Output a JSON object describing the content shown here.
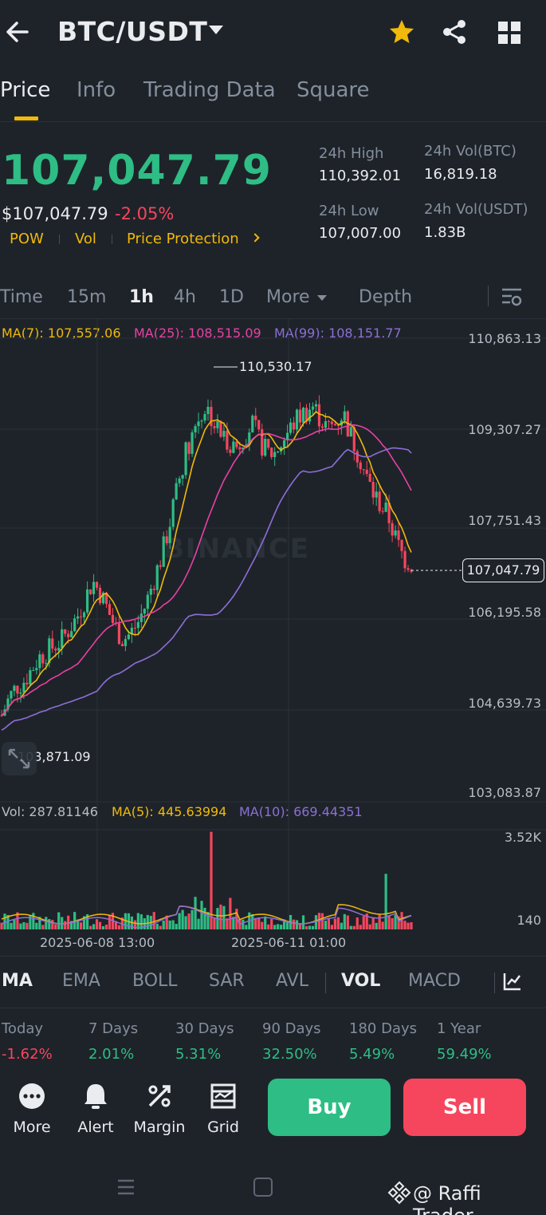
{
  "header": {
    "pair": "BTC/USDT",
    "icons": [
      "back-arrow-icon",
      "caret-down-icon",
      "star-icon",
      "share-icon",
      "grid-icon"
    ]
  },
  "tabs": [
    {
      "label": "Price",
      "active": true
    },
    {
      "label": "Info",
      "active": false
    },
    {
      "label": "Trading Data",
      "active": false
    },
    {
      "label": "Square",
      "active": false
    }
  ],
  "ticker": {
    "last_price": "107,047.79",
    "usd_price": "$107,047.79",
    "change_pct": "-2.05%",
    "tags": [
      "POW",
      "Vol",
      "Price Protection"
    ],
    "high_label": "24h High",
    "high": "110,392.01",
    "low_label": "24h Low",
    "low": "107,007.00",
    "vol_btc_label": "24h Vol(BTC)",
    "vol_btc": "16,819.18",
    "vol_usdt_label": "24h Vol(USDT)",
    "vol_usdt": "1.83B"
  },
  "intervals": {
    "items": [
      "Time",
      "15m",
      "1h",
      "4h",
      "1D",
      "More",
      "Depth"
    ],
    "active": "1h"
  },
  "ma_legend": {
    "ma7": "MA(7): 107,557.06",
    "ma25": "MA(25): 108,515.09",
    "ma99": "MA(99): 108,151.77"
  },
  "colors": {
    "up": "#2ebd85",
    "down": "#f6465d",
    "accent": "#f0b90b",
    "ma7": "#f0b90b",
    "ma25": "#e841a6",
    "ma99": "#8d6fd8"
  },
  "chart_data": {
    "type": "candlestick",
    "y_axis_labels": [
      "110,863.13",
      "109,307.27",
      "107,751.43",
      "106,195.58",
      "104,639.73",
      "103,083.87"
    ],
    "ylim": [
      103083.87,
      110863.13
    ],
    "last_price_label": "107,047.79",
    "high_marker": "110,530.17",
    "low_marker": "103,871.09",
    "x_labels": [
      "2025-06-08 13:00",
      "2025-06-11 01:00"
    ],
    "watermark": "BINANCE",
    "close_path": [
      104400,
      104700,
      104900,
      105000,
      105200,
      105400,
      105500,
      105600,
      105700,
      105900,
      106100,
      106400,
      106700,
      106500,
      106200,
      105900,
      105700,
      105800,
      106000,
      106300,
      106700,
      107100,
      107600,
      108200,
      108800,
      109200,
      109500,
      109700,
      109400,
      109200,
      109100,
      109000,
      109200,
      109400,
      109100,
      108900,
      108900,
      109100,
      109300,
      109500,
      109600,
      109700,
      109500,
      109300,
      109400,
      109600,
      109200,
      108900,
      108500,
      108200,
      108000,
      107800,
      107400,
      107100,
      107000
    ],
    "volume": {
      "legend_vol": "Vol: 287.81146",
      "legend_ma5": "MA(5): 445.63994",
      "legend_ma10": "MA(10): 669.44351",
      "y_labels": [
        "3.52K",
        "140"
      ]
    }
  },
  "indicators": {
    "items": [
      "MA",
      "EMA",
      "BOLL",
      "SAR",
      "AVL",
      "VOL",
      "MACD"
    ],
    "active": [
      "MA",
      "VOL"
    ]
  },
  "performance": [
    {
      "label": "Today",
      "value": "-1.62%",
      "dir": "down"
    },
    {
      "label": "7 Days",
      "value": "2.01%",
      "dir": "up"
    },
    {
      "label": "30 Days",
      "value": "5.31%",
      "dir": "up"
    },
    {
      "label": "90 Days",
      "value": "32.50%",
      "dir": "up"
    },
    {
      "label": "180 Days",
      "value": "5.49%",
      "dir": "up"
    },
    {
      "label": "1 Year",
      "value": "59.49%",
      "dir": "up"
    }
  ],
  "actions": [
    {
      "label": "More",
      "icon": "more-dots-icon"
    },
    {
      "label": "Alert",
      "icon": "bell-icon"
    },
    {
      "label": "Margin",
      "icon": "margin-percent-icon"
    },
    {
      "label": "Grid",
      "icon": "grid-bot-icon"
    }
  ],
  "buy_label": "Buy",
  "sell_label": "Sell",
  "credit": "@ Raffi Trader"
}
